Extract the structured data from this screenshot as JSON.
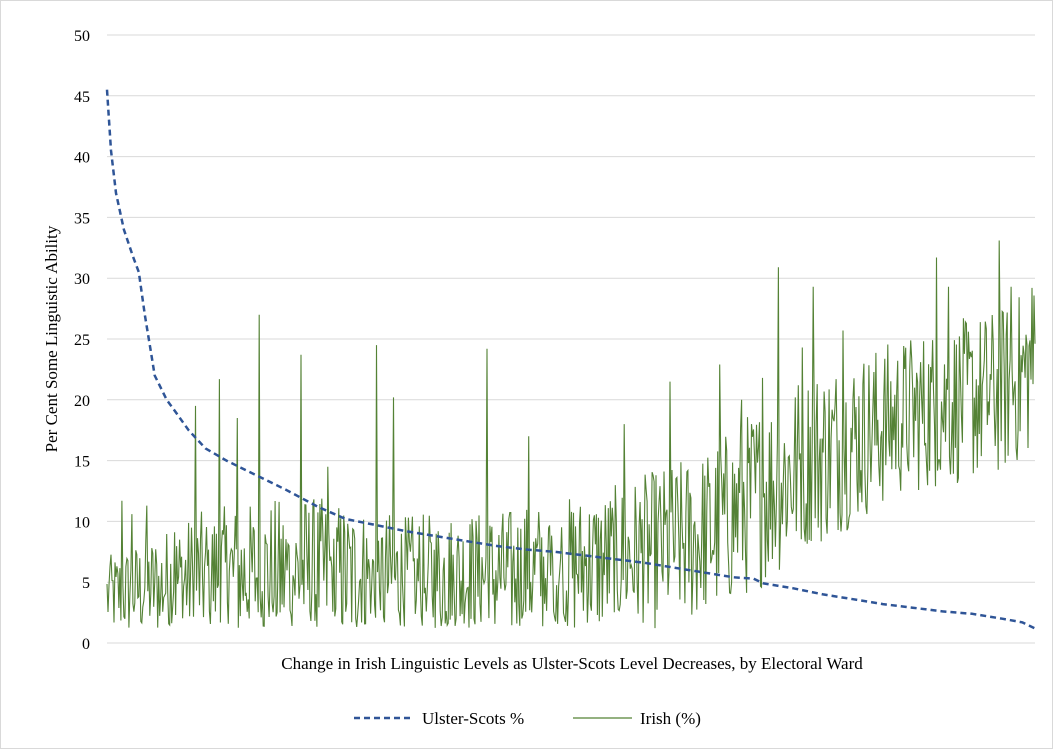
{
  "chart_data": {
    "type": "line",
    "title": "",
    "xlabel": "Change in Irish Linguistic  Levels as Ulster-Scots Level Decreases, by Electoral  Ward",
    "ylabel": "Per Cent Some Linguistic  Ability",
    "ylim": [
      0,
      50
    ],
    "yticks": [
      0,
      5,
      10,
      15,
      20,
      25,
      30,
      35,
      40,
      45,
      50
    ],
    "grid": true,
    "legend_position": "bottom",
    "x": "electoral ward index (about 800 wards, ordered by decreasing Ulster-Scots level; no tick labels)",
    "series": [
      {
        "name": "Ulster-Scots %",
        "style": "dashed",
        "color": "#2f5597",
        "points": [
          [
            0,
            45.5
          ],
          [
            4,
            40.5
          ],
          [
            9,
            37
          ],
          [
            17,
            34
          ],
          [
            26,
            31.8
          ],
          [
            32,
            30.5
          ],
          [
            38,
            27
          ],
          [
            44,
            24
          ],
          [
            48,
            22
          ],
          [
            60,
            20
          ],
          [
            69,
            19
          ],
          [
            82,
            17.5
          ],
          [
            99,
            16
          ],
          [
            120,
            15
          ],
          [
            150,
            13.8
          ],
          [
            180,
            12.6
          ],
          [
            212,
            11.2
          ],
          [
            240,
            10.2
          ],
          [
            270,
            9.7
          ],
          [
            300,
            9.2
          ],
          [
            330,
            8.8
          ],
          [
            360,
            8.4
          ],
          [
            390,
            8.0
          ],
          [
            420,
            7.7
          ],
          [
            450,
            7.5
          ],
          [
            480,
            7.2
          ],
          [
            510,
            6.9
          ],
          [
            540,
            6.6
          ],
          [
            570,
            6.2
          ],
          [
            600,
            5.8
          ],
          [
            630,
            5.4
          ],
          [
            650,
            5.3
          ],
          [
            660,
            4.9
          ],
          [
            690,
            4.5
          ],
          [
            720,
            4.0
          ],
          [
            750,
            3.6
          ],
          [
            780,
            3.2
          ],
          [
            810,
            2.9
          ],
          [
            840,
            2.6
          ],
          [
            870,
            2.4
          ],
          [
            900,
            2.0
          ],
          [
            920,
            1.7
          ],
          [
            933,
            1.2
          ]
        ]
      },
      {
        "name": "Irish (%)",
        "style": "solid",
        "color": "#548235",
        "anchors": [
          [
            0,
            3.5
          ],
          [
            100,
            5
          ],
          [
            200,
            5
          ],
          [
            300,
            4.5
          ],
          [
            400,
            5
          ],
          [
            500,
            6
          ],
          [
            600,
            8
          ],
          [
            650,
            11
          ],
          [
            700,
            14
          ],
          [
            750,
            16
          ],
          [
            800,
            18
          ],
          [
            850,
            19
          ],
          [
            900,
            20
          ],
          [
            933,
            22
          ]
        ],
        "spread_anchors": [
          [
            0,
            6
          ],
          [
            100,
            10
          ],
          [
            200,
            12
          ],
          [
            300,
            10
          ],
          [
            400,
            10
          ],
          [
            500,
            11
          ],
          [
            600,
            13
          ],
          [
            650,
            14
          ],
          [
            700,
            14
          ],
          [
            800,
            12
          ],
          [
            933,
            13
          ]
        ],
        "peaks": [
          [
            3,
            6.3
          ],
          [
            15,
            11.7
          ],
          [
            25,
            10.6
          ],
          [
            40,
            11.3
          ],
          [
            68,
            9.1
          ],
          [
            89,
            19.5
          ],
          [
            113,
            21.7
          ],
          [
            131,
            18.5
          ],
          [
            153,
            27
          ],
          [
            195,
            23.7
          ],
          [
            222,
            14.5
          ],
          [
            271,
            24.5
          ],
          [
            288,
            20.2
          ],
          [
            382,
            24.2
          ],
          [
            424,
            17
          ],
          [
            520,
            18
          ],
          [
            566,
            21.5
          ],
          [
            616,
            22.9
          ],
          [
            638,
            20
          ],
          [
            659,
            21.8
          ],
          [
            675,
            30.9
          ],
          [
            699,
            24.3
          ],
          [
            710,
            29.3
          ],
          [
            740,
            25.7
          ],
          [
            834,
            31.7
          ],
          [
            846,
            29.3
          ],
          [
            869,
            23.5
          ],
          [
            897,
            33.1
          ],
          [
            909,
            29.3
          ],
          [
            930,
            29.2
          ]
        ]
      }
    ]
  }
}
